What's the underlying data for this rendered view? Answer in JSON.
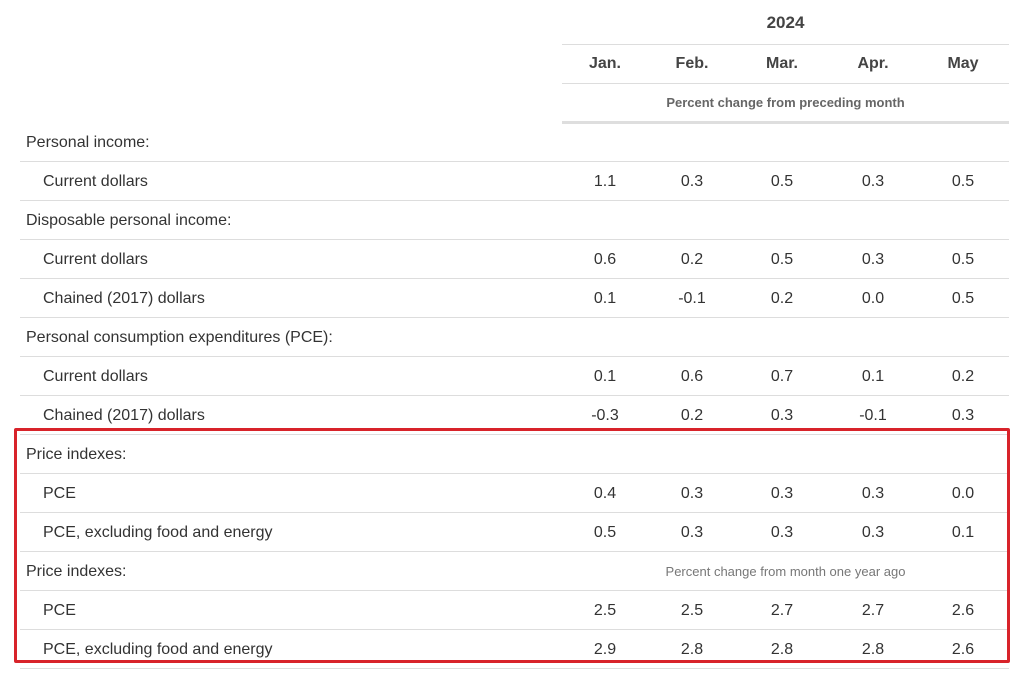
{
  "header": {
    "year": "2024",
    "months": [
      "Jan.",
      "Feb.",
      "Mar.",
      "Apr.",
      "May"
    ],
    "unit_top": "Percent change from preceding month",
    "unit_yoy": "Percent change from month one year ago"
  },
  "rows": [
    {
      "type": "section",
      "label": "Personal income:"
    },
    {
      "type": "item",
      "label": "Current dollars",
      "values": [
        "1.1",
        "0.3",
        "0.5",
        "0.3",
        "0.5"
      ]
    },
    {
      "type": "section",
      "label": "Disposable personal income:"
    },
    {
      "type": "item",
      "label": "Current dollars",
      "values": [
        "0.6",
        "0.2",
        "0.5",
        "0.3",
        "0.5"
      ]
    },
    {
      "type": "item",
      "label": "Chained (2017) dollars",
      "values": [
        "0.1",
        "-0.1",
        "0.2",
        "0.0",
        "0.5"
      ]
    },
    {
      "type": "section",
      "label": "Personal consumption expenditures (PCE):"
    },
    {
      "type": "item",
      "label": "Current dollars",
      "values": [
        "0.1",
        "0.6",
        "0.7",
        "0.1",
        "0.2"
      ]
    },
    {
      "type": "item",
      "label": "Chained (2017) dollars",
      "values": [
        "-0.3",
        "0.2",
        "0.3",
        "-0.1",
        "0.3"
      ]
    },
    {
      "type": "section",
      "label": "Price indexes:"
    },
    {
      "type": "item",
      "label": "PCE",
      "values": [
        "0.4",
        "0.3",
        "0.3",
        "0.3",
        "0.0"
      ]
    },
    {
      "type": "item",
      "label": "PCE, excluding food and energy",
      "values": [
        "0.5",
        "0.3",
        "0.3",
        "0.3",
        "0.1"
      ]
    },
    {
      "type": "section",
      "label": "Price indexes:",
      "unit": "Percent change from month one year ago"
    },
    {
      "type": "item",
      "label": "PCE",
      "values": [
        "2.5",
        "2.5",
        "2.7",
        "2.7",
        "2.6"
      ]
    },
    {
      "type": "item",
      "label": "PCE, excluding food and energy",
      "values": [
        "2.9",
        "2.8",
        "2.8",
        "2.8",
        "2.6"
      ]
    }
  ],
  "highlight_color": "#d8232a"
}
